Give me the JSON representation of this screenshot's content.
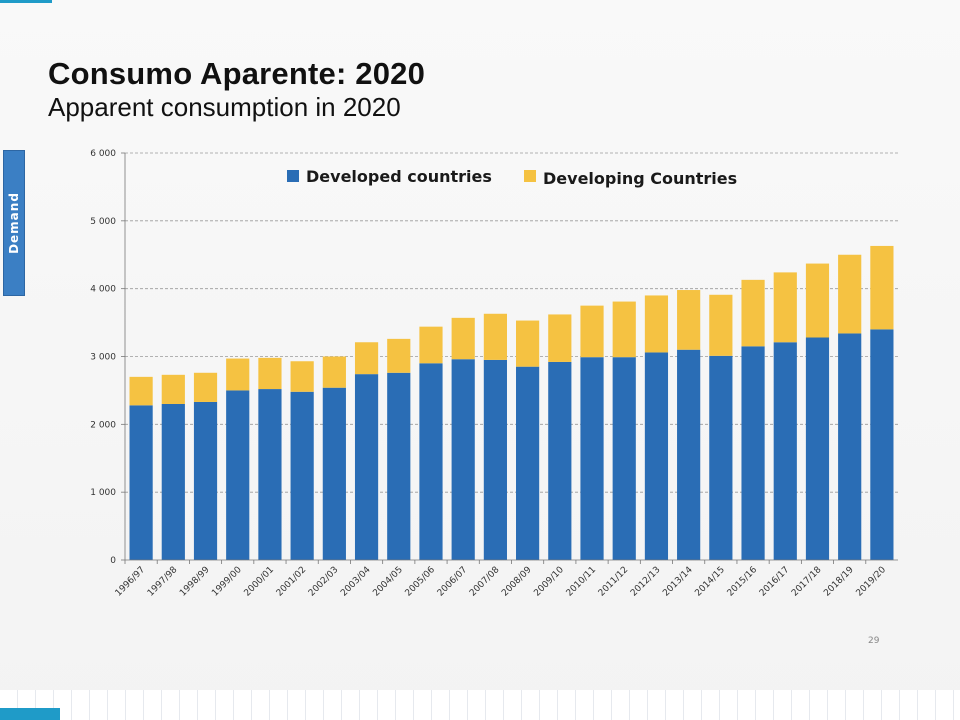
{
  "slide": {
    "title": "Consumo Aparente: 2020",
    "subtitle": "Apparent consumption in 2020",
    "side_tab": "Demand",
    "page_number": "29"
  },
  "colors": {
    "developed": "#2a6db5",
    "developing": "#f5c242",
    "gridline": "#9a9a9a",
    "side_tab": "#3b7fc4"
  },
  "chart_data": {
    "type": "bar",
    "stacked": true,
    "categories": [
      "1996/97",
      "1997/98",
      "1998/99",
      "1999/00",
      "2000/01",
      "2001/02",
      "2002/03",
      "2003/04",
      "2004/05",
      "2005/06",
      "2006/07",
      "2007/08",
      "2008/09",
      "2009/10",
      "2010/11",
      "2011/12",
      "2012/13",
      "2013/14",
      "2014/15",
      "2015/16",
      "2016/17",
      "2017/18",
      "2018/19",
      "2019/20"
    ],
    "series": [
      {
        "name": "Developed countries",
        "color": "#2a6db5",
        "values": [
          2280,
          2300,
          2330,
          2500,
          2520,
          2480,
          2540,
          2740,
          2760,
          2900,
          2960,
          2950,
          2850,
          2920,
          2990,
          2990,
          3060,
          3100,
          3010,
          3150,
          3210,
          3280,
          3340,
          3400
        ]
      },
      {
        "name": "Developing Countries",
        "color": "#f5c242",
        "values": [
          420,
          430,
          430,
          470,
          460,
          450,
          460,
          470,
          500,
          540,
          610,
          680,
          680,
          700,
          760,
          820,
          840,
          880,
          900,
          980,
          1030,
          1090,
          1160,
          1230
        ]
      }
    ],
    "y_ticks": [
      "0",
      "1 000",
      "2 000",
      "3 000",
      "4 000",
      "5 000",
      "6 000"
    ],
    "y_tick_values": [
      0,
      1000,
      2000,
      3000,
      4000,
      5000,
      6000
    ],
    "ylim": [
      0,
      6000
    ],
    "grid": true,
    "legend": "top"
  }
}
